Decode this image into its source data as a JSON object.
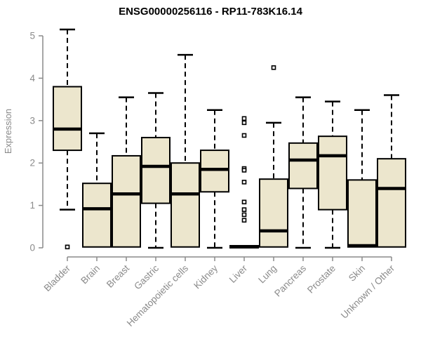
{
  "chart_data": {
    "type": "boxplot",
    "title": "ENSG00000256116 - RP11-783K16.14",
    "xlabel": "",
    "ylabel": "Expression",
    "ylim": [
      0,
      5
    ],
    "yticks": [
      0,
      1,
      2,
      3,
      4,
      5
    ],
    "grid": false,
    "legend": "none",
    "colors": {
      "box_fill": "#ece6cd",
      "box_border": "#000000",
      "median": "#000000",
      "whisker": "#000000",
      "axis": "#8a8a8a",
      "tick_label": "#8a8a8a",
      "title": "#000000",
      "background": "#ffffff"
    },
    "categories": [
      "Bladder",
      "Brain",
      "Breast",
      "Gastric",
      "Hematopoietic cells",
      "Kidney",
      "Liver",
      "Lung",
      "Pancreas",
      "Prostate",
      "Skin",
      "Unknown / Other"
    ],
    "series": [
      {
        "category": "Bladder",
        "whisker_low": 0.9,
        "q1": 2.3,
        "median": 2.8,
        "q3": 3.8,
        "whisker_high": 5.15,
        "outliers": [
          0.02
        ]
      },
      {
        "category": "Brain",
        "whisker_low": null,
        "q1": 0.02,
        "median": 0.92,
        "q3": 1.52,
        "whisker_high": 2.7,
        "outliers": []
      },
      {
        "category": "Breast",
        "whisker_low": null,
        "q1": 0.02,
        "median": 1.27,
        "q3": 2.17,
        "whisker_high": 3.55,
        "outliers": []
      },
      {
        "category": "Gastric",
        "whisker_low": 0.0,
        "q1": 1.05,
        "median": 1.92,
        "q3": 2.6,
        "whisker_high": 3.65,
        "outliers": []
      },
      {
        "category": "Hematopoietic cells",
        "whisker_low": null,
        "q1": 0.02,
        "median": 1.27,
        "q3": 2.0,
        "whisker_high": 4.55,
        "outliers": []
      },
      {
        "category": "Kidney",
        "whisker_low": 0.0,
        "q1": 1.32,
        "median": 1.85,
        "q3": 2.3,
        "whisker_high": 3.25,
        "outliers": []
      },
      {
        "category": "Liver",
        "whisker_low": null,
        "q1": 0.0,
        "median": 0.02,
        "q3": 0.05,
        "whisker_high": null,
        "outliers": [
          3.05,
          2.95,
          2.65,
          1.87,
          1.83,
          1.55,
          1.08,
          0.9,
          0.78,
          0.65
        ]
      },
      {
        "category": "Lung",
        "whisker_low": null,
        "q1": 0.02,
        "median": 0.4,
        "q3": 1.62,
        "whisker_high": 2.95,
        "outliers": [
          4.25
        ]
      },
      {
        "category": "Pancreas",
        "whisker_low": 0.0,
        "q1": 1.4,
        "median": 2.07,
        "q3": 2.47,
        "whisker_high": 3.55,
        "outliers": []
      },
      {
        "category": "Prostate",
        "whisker_low": 0.0,
        "q1": 0.9,
        "median": 2.17,
        "q3": 2.63,
        "whisker_high": 3.45,
        "outliers": []
      },
      {
        "category": "Skin",
        "whisker_low": null,
        "q1": 0.02,
        "median": 0.05,
        "q3": 1.6,
        "whisker_high": 3.25,
        "outliers": []
      },
      {
        "category": "Unknown / Other",
        "whisker_low": null,
        "q1": 0.02,
        "median": 1.4,
        "q3": 2.1,
        "whisker_high": 3.6,
        "outliers": []
      }
    ]
  }
}
